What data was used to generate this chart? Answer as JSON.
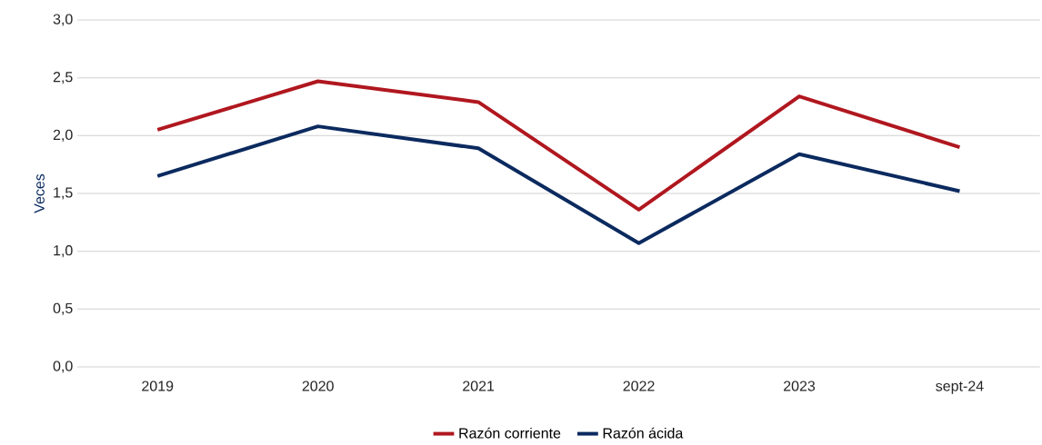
{
  "chart_data": {
    "type": "line",
    "ylabel": "Veces",
    "categories": [
      "2019",
      "2020",
      "2021",
      "2022",
      "2023",
      "sept-24"
    ],
    "series": [
      {
        "name": "Razón corriente",
        "color": "#b0171f",
        "values": [
          2.05,
          2.47,
          2.29,
          1.36,
          2.34,
          1.9
        ]
      },
      {
        "name": "Razón ácida",
        "color": "#0b2a5f",
        "values": [
          1.65,
          2.08,
          1.89,
          1.07,
          1.84,
          1.52
        ]
      }
    ],
    "ylim": [
      0,
      3
    ],
    "yticks": [
      {
        "value": 0,
        "label": "0,0"
      },
      {
        "value": 0.5,
        "label": "0,5"
      },
      {
        "value": 1,
        "label": "1,0"
      },
      {
        "value": 1.5,
        "label": "1,5"
      },
      {
        "value": 2,
        "label": "2,0"
      },
      {
        "value": 2.5,
        "label": "2,5"
      },
      {
        "value": 3,
        "label": "3,0"
      }
    ],
    "grid": "y",
    "legend": "bottom",
    "marker": "none",
    "line_style": "solid"
  }
}
